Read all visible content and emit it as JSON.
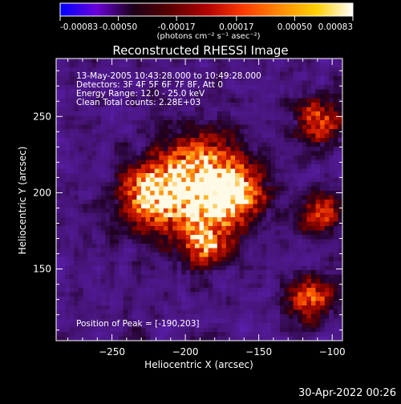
{
  "colorbar": {
    "tick_labels": [
      "-0.00083",
      "-0.00050",
      "-0.00017",
      "0.00017",
      "0.00050",
      "0.00083"
    ],
    "tick_values": [
      -0.00083,
      -0.0005,
      -0.00017,
      0.00017,
      0.0005,
      0.00083
    ],
    "unit_label": "(photons cm⁻² s⁻¹ asec⁻²)",
    "colors": [
      "#0000ff",
      "#6a00d8",
      "#1a0018",
      "#5a0000",
      "#b00000",
      "#ff3a00",
      "#ff8a00",
      "#ffd000",
      "#ffffff"
    ]
  },
  "chart_data": {
    "type": "heatmap",
    "title": "Reconstructed RHESSI Image",
    "xlabel": "Heliocentric X (arcsec)",
    "ylabel": "Heliocentric Y (arcsec)",
    "xlim": [
      -288,
      -93
    ],
    "ylim": [
      103,
      288
    ],
    "x_ticks": [
      -250,
      -200,
      -150,
      -100
    ],
    "x_tick_labels": [
      "−250",
      "−200",
      "−150",
      "−100"
    ],
    "y_ticks": [
      150,
      200,
      250
    ],
    "y_tick_labels": [
      "150",
      "200",
      "250"
    ],
    "grid": false,
    "peak": [
      -190,
      203
    ],
    "annotations": [
      "13-May-2005 10:43:28.000 to 10:49:28.000",
      "Detectors: 3F 4F 5F 6F 7F 8F, Att 0",
      "Energy Range: 12.0 - 25.0 keV",
      "Clean     Total counts: 2.28E+03"
    ],
    "peak_label": "Position of Peak = [-190,203]"
  },
  "footer": {
    "timestamp": "30-Apr-2022 00:26"
  }
}
